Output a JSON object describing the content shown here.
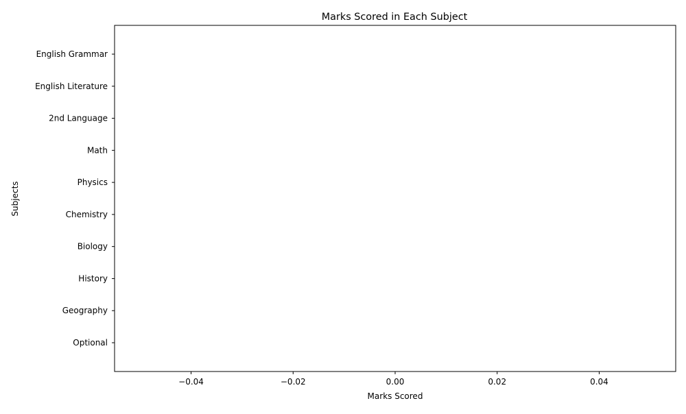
{
  "chart_data": {
    "type": "bar",
    "orientation": "horizontal",
    "title": "Marks Scored in Each Subject",
    "xlabel": "Marks Scored",
    "ylabel": "Subjects",
    "categories": [
      "English Grammar",
      "English Literature",
      "2nd Language",
      "Math",
      "Physics",
      "Chemistry",
      "Biology",
      "History",
      "Geography",
      "Optional"
    ],
    "values": [
      0,
      0,
      0,
      0,
      0,
      0,
      0,
      0,
      0,
      0
    ],
    "xlim": [
      -0.055,
      0.055
    ],
    "xticks": [
      -0.04,
      -0.02,
      0.0,
      0.02,
      0.04
    ],
    "xtick_labels": [
      "−0.04",
      "−0.02",
      "0.00",
      "0.02",
      "0.04"
    ],
    "grid": false,
    "legend": "none",
    "bar_color": "#1f77b4"
  }
}
